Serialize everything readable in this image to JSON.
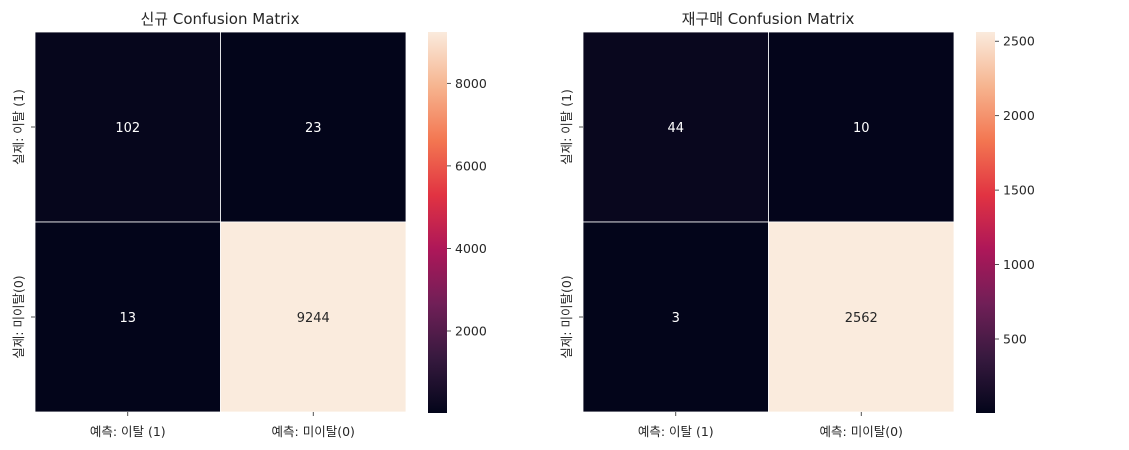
{
  "chart_data": [
    {
      "type": "heatmap",
      "title": "신규 Confusion Matrix",
      "x_tick_labels": [
        "예측: 이탈 (1)",
        "예측: 미이탈(0)"
      ],
      "y_tick_labels": [
        "실제: 이탈 (1)",
        "실제: 미이탈(0)"
      ],
      "values": [
        [
          102,
          23
        ],
        [
          13,
          9244
        ]
      ],
      "cell_labels": [
        [
          "102",
          "23"
        ],
        [
          "13",
          "9244"
        ]
      ],
      "colorbar_range": [
        13,
        9244
      ],
      "colorbar_ticks": [
        2000,
        4000,
        6000,
        8000
      ],
      "colorbar_tick_labels": [
        "2000",
        "4000",
        "6000",
        "8000"
      ]
    },
    {
      "type": "heatmap",
      "title": "재구매 Confusion Matrix",
      "x_tick_labels": [
        "예측: 이탈 (1)",
        "예측: 미이탈(0)"
      ],
      "y_tick_labels": [
        "실제: 이탈 (1)",
        "실제: 미이탈(0)"
      ],
      "values": [
        [
          44,
          10
        ],
        [
          3,
          2562
        ]
      ],
      "cell_labels": [
        [
          "44",
          "10"
        ],
        [
          "3",
          "2562"
        ]
      ],
      "colorbar_range": [
        3,
        2562
      ],
      "colorbar_ticks": [
        500,
        1000,
        1500,
        2000,
        2500
      ],
      "colorbar_tick_labels": [
        "500",
        "1000",
        "1500",
        "2000",
        "2500"
      ]
    }
  ],
  "colormap": [
    "#03051a",
    "#36193e",
    "#701f57",
    "#ad1759",
    "#e13342",
    "#f37651",
    "#f6b48f",
    "#faebdd"
  ]
}
